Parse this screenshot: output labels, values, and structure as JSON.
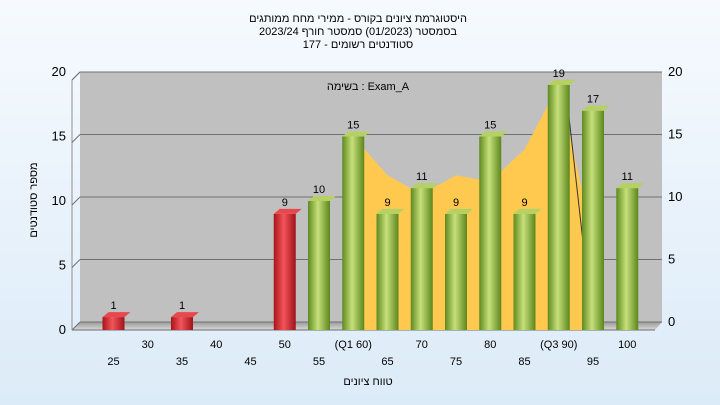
{
  "title_lines": [
    "היסטוגרמת ציונים בקורס - ממירי מחח ממותגים",
    "בסמסטר  (01/2023)  סמסטר חורף 2023/24",
    "סטודנטים רשומים - 177"
  ],
  "colors": {
    "plot_bg": "#c0c0c0",
    "grid": "#707070",
    "bar_red": "#d8262c",
    "bar_green": "#8fba3c",
    "area": "#ffc84f"
  },
  "chart_data": {
    "type": "bar",
    "annotation": "בשימה : Exam_A",
    "xlabel": "טווח ציונים",
    "ylabel": "מספר סטודנטים",
    "ylim": [
      0,
      20
    ],
    "yticks": [
      0,
      5,
      10,
      15,
      20
    ],
    "grid": true,
    "categories": [
      "25",
      "30",
      "35",
      "40",
      "45",
      "50",
      "55",
      "(Q1 60)",
      "65",
      "70",
      "75",
      "80",
      "85",
      "(Q3 90)",
      "95",
      "100"
    ],
    "values": [
      1,
      0,
      1,
      0,
      0,
      9,
      10,
      15,
      9,
      11,
      9,
      15,
      9,
      19,
      17,
      11
    ],
    "bar_colors": [
      "red",
      "red",
      "red",
      "red",
      "red",
      "red",
      "green",
      "green",
      "green",
      "green",
      "green",
      "green",
      "green",
      "green",
      "green",
      "green"
    ],
    "area": {
      "x": [
        "(Q1 60)",
        "65",
        "70",
        "75",
        "80",
        "85",
        "(Q3 90)",
        "95"
      ],
      "values": [
        15,
        12,
        10.5,
        12,
        11.5,
        14,
        19,
        7
      ]
    }
  }
}
